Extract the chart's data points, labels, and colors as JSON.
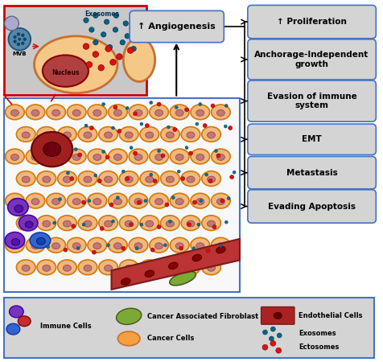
{
  "fig_width": 4.76,
  "fig_height": 4.5,
  "dpi": 100,
  "bg_color": "#ffffff",
  "legend_bg": "#d4d4d4",
  "legend_border": "#4472c4",
  "box_bg": "#d4d4d4",
  "box_border": "#4472c4",
  "right_boxes": [
    "↑ Proliferation",
    "Anchorage-Independent\ngrowth",
    "Evasion of immune\nsystem",
    "EMT",
    "Metastasis",
    "Evading Apoptosis"
  ],
  "angio_box": "↑ Angiogenesis",
  "main_image_border": "#4472c4",
  "inset_border": "#cc0000",
  "inset_bg": "#c8c8c8",
  "nucleus_label": "Nucleus",
  "mvb_label": "MVB",
  "exosomes_label": "Exosomes"
}
